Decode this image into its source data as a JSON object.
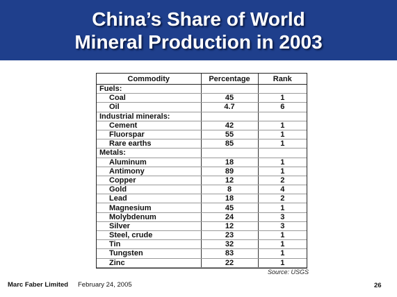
{
  "slide": {
    "title_line1": "China’s Share of World",
    "title_line2": "Mineral Production in 2003"
  },
  "table": {
    "headers": {
      "commodity": "Commodity",
      "percentage": "Percentage",
      "rank": "Rank"
    },
    "rows": [
      {
        "commodity": "Fuels:",
        "percentage": "",
        "rank": "",
        "category": true
      },
      {
        "commodity": "Coal",
        "percentage": "45",
        "rank": "1"
      },
      {
        "commodity": "Oil",
        "percentage": "4.7",
        "rank": "6"
      },
      {
        "commodity": "Industrial minerals:",
        "percentage": "",
        "rank": "",
        "category": true
      },
      {
        "commodity": "Cement",
        "percentage": "42",
        "rank": "1"
      },
      {
        "commodity": "Fluorspar",
        "percentage": "55",
        "rank": "1"
      },
      {
        "commodity": "Rare earths",
        "percentage": "85",
        "rank": "1"
      },
      {
        "commodity": "Metals:",
        "percentage": "",
        "rank": "",
        "category": true
      },
      {
        "commodity": "Aluminum",
        "percentage": "18",
        "rank": "1"
      },
      {
        "commodity": "Antimony",
        "percentage": "89",
        "rank": "1"
      },
      {
        "commodity": "Copper",
        "percentage": "12",
        "rank": "2"
      },
      {
        "commodity": "Gold",
        "percentage": "8",
        "rank": "4"
      },
      {
        "commodity": "Lead",
        "percentage": "18",
        "rank": "2"
      },
      {
        "commodity": "Magnesium",
        "percentage": "45",
        "rank": "1"
      },
      {
        "commodity": "Molybdenum",
        "percentage": "24",
        "rank": "3"
      },
      {
        "commodity": "Silver",
        "percentage": "12",
        "rank": "3"
      },
      {
        "commodity": "Steel, crude",
        "percentage": "23",
        "rank": "1"
      },
      {
        "commodity": "Tin",
        "percentage": "32",
        "rank": "1"
      },
      {
        "commodity": "Tungsten",
        "percentage": "83",
        "rank": "1"
      },
      {
        "commodity": "Zinc",
        "percentage": "22",
        "rank": "1"
      }
    ]
  },
  "source": "Source: USGS",
  "footer": {
    "company": "Marc Faber Limited",
    "date": "February 24, 2005",
    "page": "26"
  },
  "colors": {
    "title_band": "#1f3f8c",
    "title_text": "#ffffff"
  }
}
